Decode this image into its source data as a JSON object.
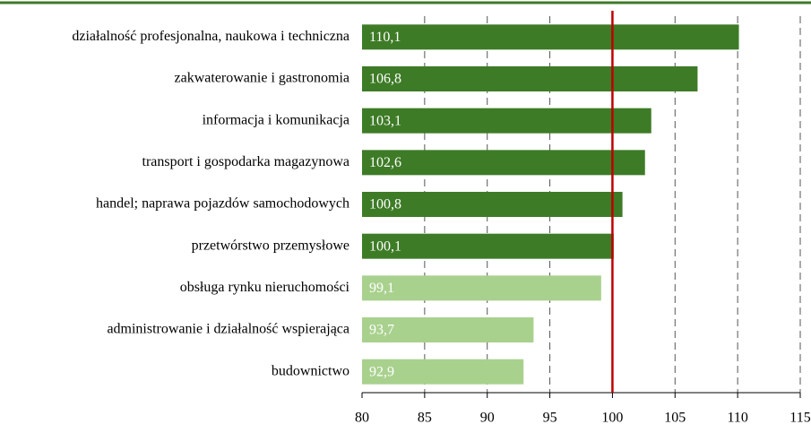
{
  "chart_data": {
    "type": "bar",
    "orientation": "horizontal",
    "categories": [
      "działalność profesjonalna, naukowa i techniczna",
      "zakwaterowanie i gastronomia",
      "informacja i komunikacja",
      "transport i gospodarka magazynowa",
      "handel; naprawa pojazdów samochodowych",
      "przetwórstwo przemysłowe",
      "obsługa rynku nieruchomości",
      "administrowanie i działalność wspierająca",
      "budownictwo"
    ],
    "values": [
      110.1,
      106.8,
      103.1,
      102.6,
      100.8,
      100.1,
      99.1,
      93.7,
      92.9
    ],
    "value_labels": [
      "110,1",
      "106,8",
      "103,1",
      "102,6",
      "100,8",
      "100,1",
      "99,1",
      "93,7",
      "92,9"
    ],
    "colors": [
      "#3e7b27",
      "#3e7b27",
      "#3e7b27",
      "#3e7b27",
      "#3e7b27",
      "#3e7b27",
      "#a9d18e",
      "#a9d18e",
      "#a9d18e"
    ],
    "xlim": [
      80,
      115
    ],
    "xticks": [
      80,
      85,
      90,
      95,
      100,
      105,
      110,
      115
    ],
    "grid": true,
    "reference_line": {
      "value": 100,
      "color": "#c00000"
    }
  }
}
